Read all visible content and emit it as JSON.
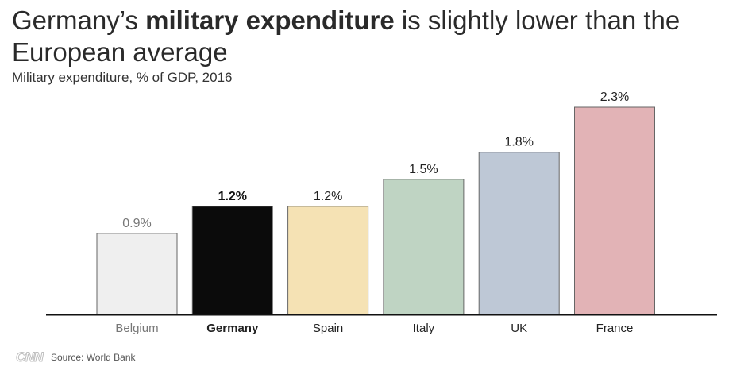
{
  "title": {
    "part1": "Germany’s ",
    "bold": "military expenditure",
    "part2": " is slightly lower than the European average"
  },
  "subtitle": "Military expenditure, % of GDP, 2016",
  "footer": {
    "logo": "CNN",
    "source": "Source: World Bank"
  },
  "chart_data": {
    "type": "bar",
    "title": "Germany’s military expenditure is slightly lower than the European average",
    "subtitle": "Military expenditure, % of GDP, 2016",
    "xlabel": "",
    "ylabel": "",
    "ylim": [
      0,
      2.3
    ],
    "grid": false,
    "categories": [
      "Belgium",
      "Germany",
      "Spain",
      "Italy",
      "UK",
      "France"
    ],
    "values": [
      0.9,
      1.2,
      1.2,
      1.5,
      1.8,
      2.3
    ],
    "value_labels": [
      "0.9%",
      "1.2%",
      "1.2%",
      "1.5%",
      "1.8%",
      "2.3%"
    ],
    "highlight": "Germany",
    "colors": [
      "#efefef",
      "#0b0b0b",
      "#f5e2b4",
      "#bfd4c3",
      "#bec8d6",
      "#e2b3b6"
    ],
    "label_colors": [
      "#777777",
      "#111111",
      "#222222",
      "#222222",
      "#222222",
      "#222222"
    ]
  }
}
